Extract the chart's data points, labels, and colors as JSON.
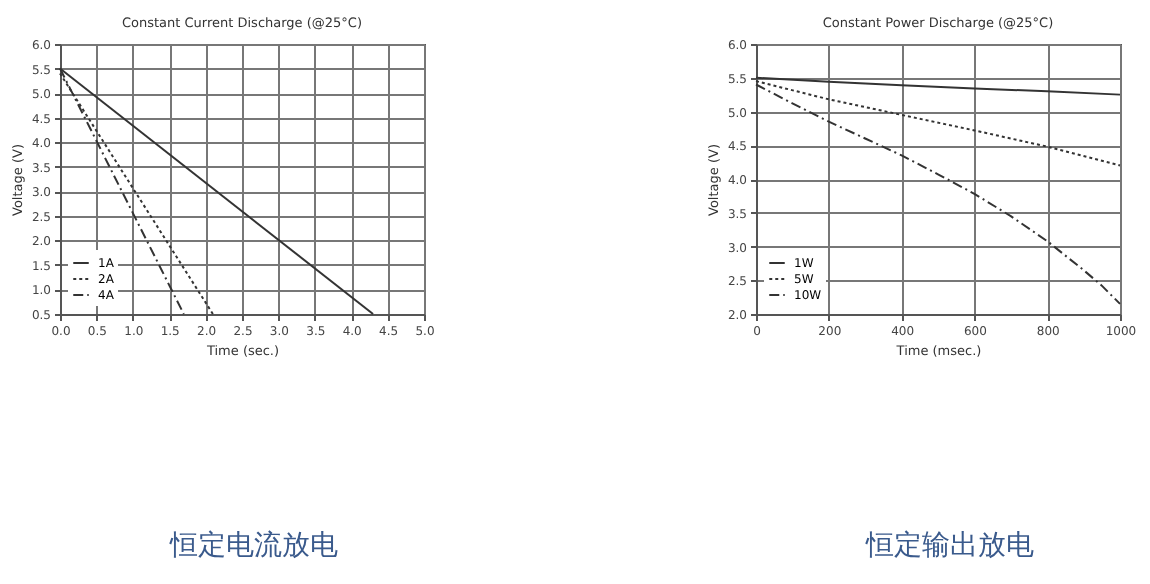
{
  "chart_data": [
    {
      "type": "line",
      "title": "Constant Current Discharge (@25°C)",
      "xlabel": "Time (sec.)",
      "ylabel": "Voltage (V)",
      "series": [
        {
          "name": "1A",
          "color": "#333333",
          "line_style": "solid",
          "x": [
            0,
            4.3
          ],
          "values": [
            5.5,
            0.5
          ]
        },
        {
          "name": "2A",
          "color": "#333333",
          "line_style": "dotted",
          "x": [
            0,
            2.1
          ],
          "values": [
            5.4,
            0.5
          ]
        },
        {
          "name": "4A",
          "color": "#333333",
          "line_style": "dashed",
          "x": [
            0,
            1.7
          ],
          "values": [
            5.5,
            0.5
          ]
        }
      ],
      "xlim": [
        0,
        5
      ],
      "ylim": [
        0.5,
        6
      ],
      "xticks": [
        {
          "value": 0,
          "label": "0.0"
        },
        0.5,
        {
          "value": 1,
          "label": "1.0"
        },
        1.5,
        {
          "value": 2,
          "label": "2.0"
        },
        2.5,
        {
          "value": 3,
          "label": "3.0"
        },
        3.5,
        {
          "value": 4,
          "label": "4.0"
        },
        4.5,
        {
          "value": 5,
          "label": "5.0"
        }
      ],
      "yticks": [
        0.5,
        {
          "value": 1,
          "label": "1.0"
        },
        1.5,
        {
          "value": 2,
          "label": "2.0"
        },
        2.5,
        {
          "value": 3,
          "label": "3.0"
        },
        3.5,
        {
          "value": 4,
          "label": "4.0"
        },
        4.5,
        {
          "value": 5,
          "label": "5.0"
        },
        5.5,
        {
          "value": 6,
          "label": "6.0"
        }
      ],
      "grid": true,
      "legend": "bottom left",
      "annotations": [
        "恒定电流放电"
      ]
    },
    {
      "type": "line",
      "title": "Constant Power Discharge (@25°C)",
      "xlabel": "Time (msec.)",
      "ylabel": "Voltage (V)",
      "series": [
        {
          "name": "1W",
          "color": "#333333",
          "line_style": "solid",
          "x": [
            0,
            200,
            400,
            600,
            800,
            1000
          ],
          "values": [
            5.5,
            5.44,
            5.39,
            5.34,
            5.3,
            5.25
          ]
        },
        {
          "name": "5W",
          "color": "#333333",
          "line_style": "dotted",
          "x": [
            0,
            200,
            400,
            600,
            800,
            1000
          ],
          "values": [
            5.45,
            5.18,
            4.95,
            4.72,
            4.48,
            4.2
          ]
        },
        {
          "name": "10W",
          "color": "#333333",
          "line_style": "dashed",
          "x": [
            0,
            100,
            200,
            300,
            400,
            500,
            600,
            700,
            800,
            900,
            950,
            1000
          ],
          "values": [
            5.4,
            5.12,
            4.85,
            4.6,
            4.35,
            4.07,
            3.78,
            3.45,
            3.08,
            2.65,
            2.42,
            2.15
          ]
        }
      ],
      "xlim": [
        0,
        1000
      ],
      "ylim": [
        2,
        6
      ],
      "xticks": [
        0,
        200,
        400,
        600,
        800,
        1000
      ],
      "yticks": [
        {
          "value": 2,
          "label": "2.0"
        },
        2.5,
        {
          "value": 3,
          "label": "3.0"
        },
        3.5,
        {
          "value": 4,
          "label": "4.0"
        },
        4.5,
        {
          "value": 5,
          "label": "5.0"
        },
        5.5,
        {
          "value": 6,
          "label": "6.0"
        }
      ],
      "grid": true,
      "legend": "bottom left",
      "annotations": [
        "恒定输出放电"
      ]
    }
  ]
}
